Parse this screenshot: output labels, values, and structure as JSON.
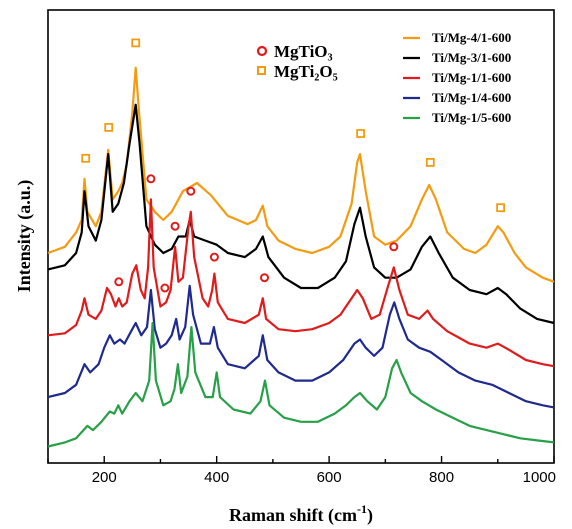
{
  "chart_data": {
    "type": "line",
    "title": "",
    "xlabel": "Raman shift (cm",
    "xlabel_superscript": "-1",
    "xlabel_close": ")",
    "ylabel": "Intensity (a.u.)",
    "xlim": [
      100,
      1000
    ],
    "xticks": [
      "200",
      "400",
      "600",
      "800",
      "1000"
    ],
    "legend_position": "top-right",
    "series": [
      {
        "name": "Ti/Mg-4/1-600",
        "color": "#f39c12",
        "points": [
          [
            100,
            0.42
          ],
          [
            130,
            0.45
          ],
          [
            150,
            0.52
          ],
          [
            160,
            0.58
          ],
          [
            165,
            0.78
          ],
          [
            170,
            0.62
          ],
          [
            185,
            0.55
          ],
          [
            195,
            0.62
          ],
          [
            207,
            0.92
          ],
          [
            215,
            0.68
          ],
          [
            225,
            0.72
          ],
          [
            232,
            0.76
          ],
          [
            240,
            0.85
          ],
          [
            250,
            1.1
          ],
          [
            256,
            1.32
          ],
          [
            262,
            1.1
          ],
          [
            275,
            0.68
          ],
          [
            290,
            0.62
          ],
          [
            305,
            0.58
          ],
          [
            320,
            0.62
          ],
          [
            340,
            0.72
          ],
          [
            365,
            0.76
          ],
          [
            390,
            0.7
          ],
          [
            420,
            0.6
          ],
          [
            455,
            0.56
          ],
          [
            470,
            0.58
          ],
          [
            482,
            0.65
          ],
          [
            490,
            0.55
          ],
          [
            510,
            0.48
          ],
          [
            540,
            0.44
          ],
          [
            570,
            0.42
          ],
          [
            600,
            0.45
          ],
          [
            620,
            0.5
          ],
          [
            640,
            0.66
          ],
          [
            650,
            0.86
          ],
          [
            655,
            0.9
          ],
          [
            665,
            0.72
          ],
          [
            680,
            0.5
          ],
          [
            700,
            0.46
          ],
          [
            720,
            0.48
          ],
          [
            745,
            0.55
          ],
          [
            765,
            0.68
          ],
          [
            778,
            0.75
          ],
          [
            790,
            0.68
          ],
          [
            810,
            0.52
          ],
          [
            840,
            0.44
          ],
          [
            860,
            0.42
          ],
          [
            880,
            0.46
          ],
          [
            900,
            0.55
          ],
          [
            910,
            0.52
          ],
          [
            930,
            0.42
          ],
          [
            950,
            0.35
          ],
          [
            980,
            0.3
          ],
          [
            1000,
            0.28
          ]
        ]
      },
      {
        "name": "Ti/Mg-3/1-600",
        "color": "#000000",
        "points": [
          [
            100,
            0.34
          ],
          [
            130,
            0.36
          ],
          [
            150,
            0.42
          ],
          [
            160,
            0.52
          ],
          [
            165,
            0.72
          ],
          [
            172,
            0.55
          ],
          [
            185,
            0.48
          ],
          [
            195,
            0.58
          ],
          [
            207,
            0.9
          ],
          [
            215,
            0.62
          ],
          [
            225,
            0.66
          ],
          [
            235,
            0.76
          ],
          [
            245,
            0.95
          ],
          [
            256,
            1.14
          ],
          [
            263,
            0.95
          ],
          [
            275,
            0.55
          ],
          [
            290,
            0.46
          ],
          [
            305,
            0.42
          ],
          [
            320,
            0.44
          ],
          [
            332,
            0.5
          ],
          [
            345,
            0.5
          ],
          [
            352,
            0.58
          ],
          [
            360,
            0.5
          ],
          [
            380,
            0.48
          ],
          [
            400,
            0.46
          ],
          [
            420,
            0.42
          ],
          [
            450,
            0.4
          ],
          [
            470,
            0.44
          ],
          [
            482,
            0.5
          ],
          [
            492,
            0.4
          ],
          [
            520,
            0.3
          ],
          [
            550,
            0.25
          ],
          [
            580,
            0.25
          ],
          [
            610,
            0.3
          ],
          [
            630,
            0.38
          ],
          [
            645,
            0.56
          ],
          [
            655,
            0.64
          ],
          [
            665,
            0.5
          ],
          [
            680,
            0.35
          ],
          [
            700,
            0.3
          ],
          [
            720,
            0.3
          ],
          [
            745,
            0.34
          ],
          [
            765,
            0.45
          ],
          [
            780,
            0.5
          ],
          [
            795,
            0.42
          ],
          [
            820,
            0.3
          ],
          [
            850,
            0.24
          ],
          [
            880,
            0.22
          ],
          [
            900,
            0.25
          ],
          [
            915,
            0.22
          ],
          [
            940,
            0.15
          ],
          [
            970,
            0.1
          ],
          [
            1000,
            0.08
          ]
        ]
      },
      {
        "name": "Ti/Mg-1/1-600",
        "color": "#e01b1b",
        "points": [
          [
            100,
            0.02
          ],
          [
            130,
            0.03
          ],
          [
            150,
            0.07
          ],
          [
            160,
            0.14
          ],
          [
            165,
            0.2
          ],
          [
            172,
            0.12
          ],
          [
            185,
            0.1
          ],
          [
            195,
            0.14
          ],
          [
            205,
            0.25
          ],
          [
            212,
            0.22
          ],
          [
            220,
            0.16
          ],
          [
            226,
            0.2
          ],
          [
            232,
            0.16
          ],
          [
            240,
            0.18
          ],
          [
            250,
            0.32
          ],
          [
            257,
            0.36
          ],
          [
            265,
            0.24
          ],
          [
            272,
            0.2
          ],
          [
            278,
            0.35
          ],
          [
            283,
            0.68
          ],
          [
            288,
            0.35
          ],
          [
            300,
            0.16
          ],
          [
            310,
            0.18
          ],
          [
            318,
            0.24
          ],
          [
            326,
            0.45
          ],
          [
            332,
            0.28
          ],
          [
            340,
            0.3
          ],
          [
            350,
            0.55
          ],
          [
            354,
            0.62
          ],
          [
            360,
            0.4
          ],
          [
            375,
            0.2
          ],
          [
            385,
            0.16
          ],
          [
            392,
            0.24
          ],
          [
            396,
            0.32
          ],
          [
            402,
            0.18
          ],
          [
            420,
            0.1
          ],
          [
            450,
            0.08
          ],
          [
            475,
            0.12
          ],
          [
            482,
            0.2
          ],
          [
            488,
            0.1
          ],
          [
            510,
            0.05
          ],
          [
            540,
            0.04
          ],
          [
            570,
            0.05
          ],
          [
            600,
            0.08
          ],
          [
            620,
            0.12
          ],
          [
            640,
            0.2
          ],
          [
            650,
            0.24
          ],
          [
            660,
            0.2
          ],
          [
            675,
            0.1
          ],
          [
            690,
            0.12
          ],
          [
            705,
            0.26
          ],
          [
            715,
            0.35
          ],
          [
            725,
            0.24
          ],
          [
            740,
            0.12
          ],
          [
            760,
            0.1
          ],
          [
            775,
            0.14
          ],
          [
            785,
            0.1
          ],
          [
            810,
            0.04
          ],
          [
            850,
            -0.02
          ],
          [
            880,
            -0.04
          ],
          [
            900,
            -0.02
          ],
          [
            920,
            -0.05
          ],
          [
            950,
            -0.1
          ],
          [
            980,
            -0.12
          ],
          [
            1000,
            -0.13
          ]
        ]
      },
      {
        "name": "Ti/Mg-1/4-600",
        "color": "#1f2a8f",
        "points": [
          [
            100,
            -0.28
          ],
          [
            130,
            -0.26
          ],
          [
            150,
            -0.22
          ],
          [
            165,
            -0.12
          ],
          [
            175,
            -0.16
          ],
          [
            190,
            -0.12
          ],
          [
            200,
            -0.04
          ],
          [
            210,
            0.02
          ],
          [
            218,
            -0.02
          ],
          [
            228,
            0.0
          ],
          [
            236,
            -0.02
          ],
          [
            248,
            0.04
          ],
          [
            256,
            0.08
          ],
          [
            266,
            0.02
          ],
          [
            276,
            0.06
          ],
          [
            283,
            0.24
          ],
          [
            290,
            0.05
          ],
          [
            300,
            -0.04
          ],
          [
            310,
            -0.02
          ],
          [
            320,
            0.02
          ],
          [
            328,
            0.1
          ],
          [
            334,
            0.0
          ],
          [
            344,
            0.06
          ],
          [
            352,
            0.26
          ],
          [
            358,
            0.12
          ],
          [
            372,
            -0.02
          ],
          [
            388,
            -0.02
          ],
          [
            395,
            0.06
          ],
          [
            402,
            -0.04
          ],
          [
            420,
            -0.12
          ],
          [
            450,
            -0.14
          ],
          [
            475,
            -0.08
          ],
          [
            482,
            0.02
          ],
          [
            490,
            -0.1
          ],
          [
            510,
            -0.16
          ],
          [
            540,
            -0.2
          ],
          [
            570,
            -0.2
          ],
          [
            600,
            -0.16
          ],
          [
            625,
            -0.1
          ],
          [
            645,
            -0.02
          ],
          [
            655,
            0.0
          ],
          [
            665,
            -0.04
          ],
          [
            680,
            -0.08
          ],
          [
            695,
            -0.04
          ],
          [
            708,
            0.12
          ],
          [
            716,
            0.18
          ],
          [
            725,
            0.1
          ],
          [
            740,
            0.0
          ],
          [
            760,
            -0.04
          ],
          [
            780,
            -0.06
          ],
          [
            800,
            -0.1
          ],
          [
            830,
            -0.16
          ],
          [
            860,
            -0.2
          ],
          [
            890,
            -0.22
          ],
          [
            920,
            -0.26
          ],
          [
            950,
            -0.3
          ],
          [
            980,
            -0.32
          ],
          [
            1000,
            -0.33
          ]
        ]
      },
      {
        "name": "Ti/Mg-1/5-600",
        "color": "#27a048",
        "points": [
          [
            100,
            -0.52
          ],
          [
            130,
            -0.5
          ],
          [
            150,
            -0.48
          ],
          [
            170,
            -0.42
          ],
          [
            180,
            -0.44
          ],
          [
            195,
            -0.4
          ],
          [
            210,
            -0.35
          ],
          [
            218,
            -0.36
          ],
          [
            225,
            -0.32
          ],
          [
            232,
            -0.36
          ],
          [
            245,
            -0.3
          ],
          [
            256,
            -0.26
          ],
          [
            268,
            -0.3
          ],
          [
            280,
            -0.2
          ],
          [
            286,
            0.08
          ],
          [
            292,
            -0.2
          ],
          [
            305,
            -0.32
          ],
          [
            318,
            -0.3
          ],
          [
            325,
            -0.24
          ],
          [
            331,
            -0.12
          ],
          [
            337,
            -0.26
          ],
          [
            348,
            -0.18
          ],
          [
            355,
            0.06
          ],
          [
            362,
            -0.16
          ],
          [
            380,
            -0.28
          ],
          [
            393,
            -0.28
          ],
          [
            400,
            -0.16
          ],
          [
            406,
            -0.28
          ],
          [
            430,
            -0.34
          ],
          [
            460,
            -0.36
          ],
          [
            478,
            -0.3
          ],
          [
            486,
            -0.2
          ],
          [
            494,
            -0.32
          ],
          [
            520,
            -0.38
          ],
          [
            550,
            -0.4
          ],
          [
            580,
            -0.4
          ],
          [
            610,
            -0.36
          ],
          [
            630,
            -0.32
          ],
          [
            645,
            -0.28
          ],
          [
            655,
            -0.26
          ],
          [
            668,
            -0.3
          ],
          [
            685,
            -0.34
          ],
          [
            700,
            -0.28
          ],
          [
            712,
            -0.14
          ],
          [
            720,
            -0.1
          ],
          [
            728,
            -0.16
          ],
          [
            745,
            -0.26
          ],
          [
            765,
            -0.3
          ],
          [
            790,
            -0.34
          ],
          [
            820,
            -0.38
          ],
          [
            850,
            -0.42
          ],
          [
            880,
            -0.44
          ],
          [
            910,
            -0.46
          ],
          [
            940,
            -0.48
          ],
          [
            970,
            -0.49
          ],
          [
            1000,
            -0.5
          ]
        ]
      }
    ],
    "marker_legend": [
      {
        "symbol": "circle",
        "label": "MgTiO₃",
        "color": "#e01b1b"
      },
      {
        "symbol": "square",
        "label": "MgTi₂O₅",
        "color": "#f39c12"
      }
    ],
    "markers": [
      {
        "type": "square",
        "x": 167,
        "y": 0.88
      },
      {
        "type": "square",
        "x": 208,
        "y": 1.03
      },
      {
        "type": "square",
        "x": 256,
        "y": 1.44
      },
      {
        "type": "square",
        "x": 656,
        "y": 1.0
      },
      {
        "type": "square",
        "x": 780,
        "y": 0.86
      },
      {
        "type": "square",
        "x": 905,
        "y": 0.64
      },
      {
        "type": "circle",
        "x": 226,
        "y": 0.28
      },
      {
        "type": "circle",
        "x": 283,
        "y": 0.78
      },
      {
        "type": "circle",
        "x": 308,
        "y": 0.25
      },
      {
        "type": "circle",
        "x": 326,
        "y": 0.55
      },
      {
        "type": "circle",
        "x": 354,
        "y": 0.72
      },
      {
        "type": "circle",
        "x": 396,
        "y": 0.4
      },
      {
        "type": "circle",
        "x": 485,
        "y": 0.3
      },
      {
        "type": "circle",
        "x": 715,
        "y": 0.45
      }
    ]
  }
}
